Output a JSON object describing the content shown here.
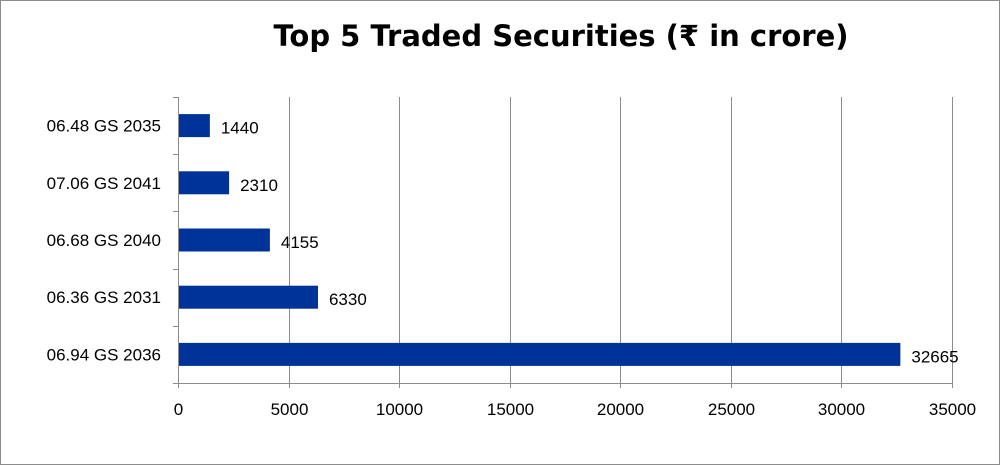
{
  "chart_data": {
    "type": "bar",
    "orientation": "horizontal",
    "title": "Top 5 Traded Securities (₹ in crore)",
    "categories": [
      "06.48 GS 2035",
      "07.06 GS 2041",
      "06.68 GS 2040",
      "06.36 GS 2031",
      "06.94 GS 2036"
    ],
    "values": [
      1440,
      2310,
      4155,
      6330,
      32665
    ],
    "data_labels": [
      "1440",
      "2310",
      "4155",
      "6330",
      "32665"
    ],
    "xlim": [
      0,
      35000
    ],
    "x_ticks": [
      0,
      5000,
      10000,
      15000,
      20000,
      25000,
      30000,
      35000
    ],
    "x_tick_labels": [
      "0",
      "5000",
      "10000",
      "15000",
      "20000",
      "25000",
      "30000",
      "35000"
    ],
    "xlabel": "",
    "ylabel": "",
    "grid": "vertical",
    "legend": "none",
    "bar_color": "#003399"
  }
}
